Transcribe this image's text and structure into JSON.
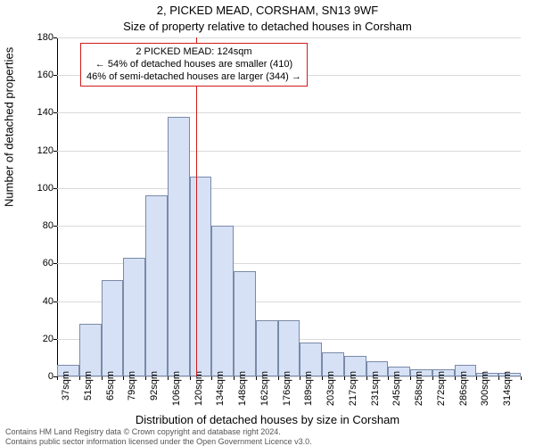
{
  "title_main": "2, PICKED MEAD, CORSHAM, SN13 9WF",
  "title_sub": "Size of property relative to detached houses in Corsham",
  "y_label": "Number of detached properties",
  "x_label": "Distribution of detached houses by size in Corsham",
  "footer_line1": "Contains HM Land Registry data © Crown copyright and database right 2024.",
  "footer_line2": "Contains public sector information licensed under the Open Government Licence v3.0.",
  "chart": {
    "type": "bar",
    "ylim": [
      0,
      180
    ],
    "ytick_step": 20,
    "background_color": "#ffffff",
    "grid_color": "#d9d9d9",
    "axis_color": "#000000",
    "bar_fill": "#d6e1f5",
    "bar_border": "#7a8aa8",
    "bar_width_ratio": 1.0,
    "annotation_border": "#d11a1a",
    "vline_color": "#d11a1a",
    "vline_x_index": 6.28,
    "tick_font_size": 11,
    "title_font_size": 13,
    "categories": [
      "37sqm",
      "51sqm",
      "65sqm",
      "79sqm",
      "92sqm",
      "106sqm",
      "120sqm",
      "134sqm",
      "148sqm",
      "162sqm",
      "176sqm",
      "189sqm",
      "203sqm",
      "217sqm",
      "231sqm",
      "245sqm",
      "258sqm",
      "272sqm",
      "286sqm",
      "300sqm",
      "314sqm"
    ],
    "values": [
      6,
      28,
      51,
      63,
      96,
      138,
      106,
      80,
      56,
      30,
      30,
      18,
      13,
      11,
      8,
      5,
      4,
      4,
      6,
      2,
      2
    ],
    "annotation": {
      "line1": "2 PICKED MEAD: 124sqm",
      "line2": "← 54% of detached houses are smaller (410)",
      "line3": "46% of semi-detached houses are larger (344) →"
    }
  }
}
